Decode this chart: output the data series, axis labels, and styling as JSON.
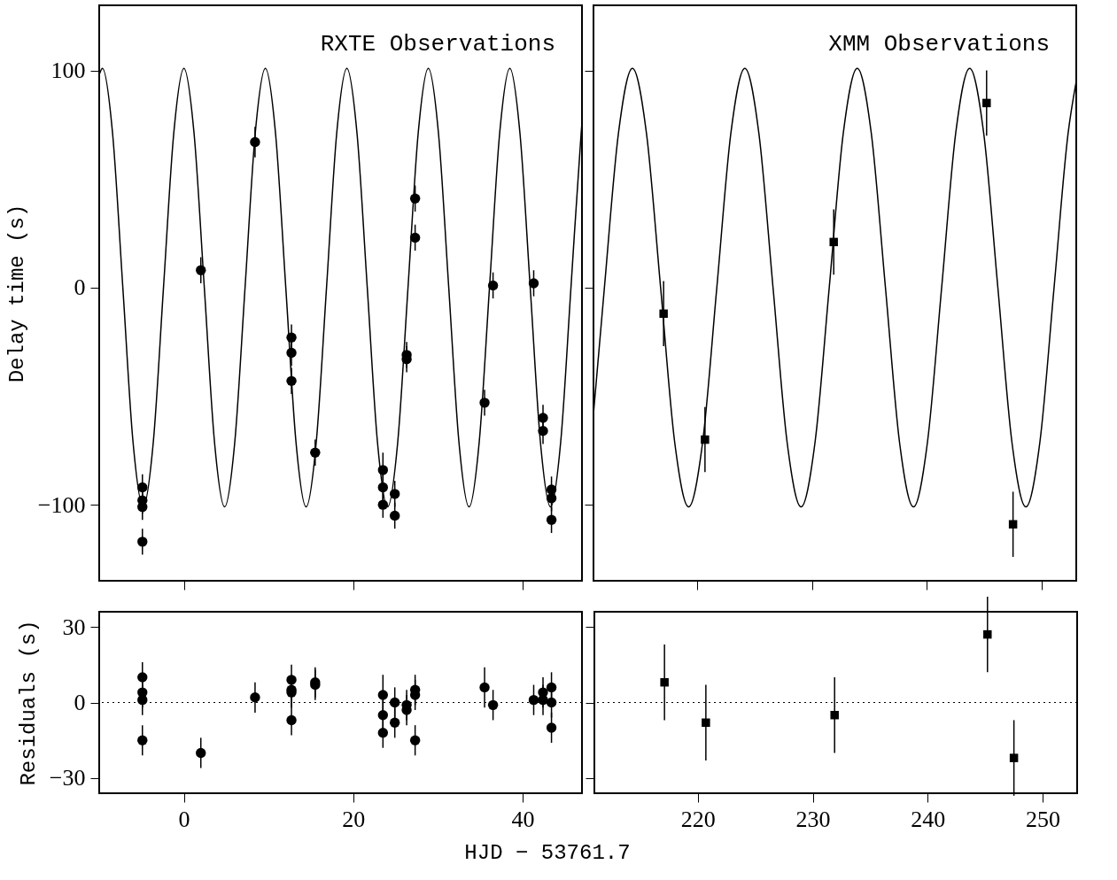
{
  "chart_data": [
    {
      "type": "scatter",
      "ylabel": "Delay time (s)",
      "xlim": [
        -10,
        47
      ],
      "ylim": [
        -135,
        130
      ],
      "xticks": [
        0,
        20,
        40
      ],
      "yticks": [
        -100,
        0,
        100
      ],
      "tick_labels": "y",
      "marker": "circle",
      "annotations": [
        "RXTE Observations"
      ],
      "series": [
        {
          "type": "line",
          "color": "#000000",
          "marker": "none",
          "line_style": "solid",
          "x": [
            -10,
            -9.62,
            -8.42,
            -7.21,
            -6.01,
            -4.81,
            -3.61,
            -2.41,
            -1.2,
            0,
            1.2,
            2.41,
            3.61,
            4.81,
            6.01,
            7.22,
            8.42,
            9.62,
            10.82,
            12.03,
            13.23,
            14.43,
            15.63,
            16.84,
            18.04,
            19.24,
            20.44,
            21.65,
            22.85,
            24.05,
            25.25,
            26.46,
            27.66,
            28.86,
            30.06,
            31.27,
            32.47,
            33.67,
            34.87,
            36.08,
            37.28,
            38.48,
            39.68,
            40.89,
            42.09,
            43.29,
            44.49,
            45.7,
            46.9,
            47
          ],
          "values": [
            98,
            101,
            71,
            0,
            -71,
            -101,
            -71,
            0,
            71,
            101,
            71,
            0,
            -71,
            -101,
            -71,
            0,
            71,
            101,
            71,
            0,
            -71,
            -101,
            -71,
            0,
            71,
            101,
            71,
            0,
            -71,
            -101,
            -71,
            0,
            71,
            101,
            71,
            0,
            -71,
            -101,
            -71,
            0,
            71,
            101,
            71,
            0,
            -71,
            -101,
            -71,
            0,
            71,
            76
          ]
        },
        {
          "color": "#000000",
          "x": [
            -4.9,
            -4.9,
            -4.9,
            -4.9,
            2.0,
            8.4,
            12.7,
            12.7,
            12.7,
            15.5,
            23.5,
            23.5,
            23.5,
            24.9,
            24.9,
            26.3,
            26.3,
            27.3,
            27.3,
            35.5,
            36.5,
            41.3,
            42.4,
            42.4,
            43.4,
            43.4,
            43.4
          ],
          "values": [
            -92,
            -98,
            -101,
            -117,
            8,
            67,
            -23,
            -30,
            -43,
            -76,
            -84,
            -92,
            -100,
            -95,
            -105,
            -31,
            -33,
            41,
            23,
            -53,
            1,
            2,
            -60,
            -66,
            -93,
            -97,
            -107
          ],
          "errors": [
            6,
            6,
            6,
            6,
            6,
            7,
            6,
            6,
            6,
            6,
            8,
            6,
            6,
            6,
            6,
            6,
            6,
            6,
            6,
            6,
            6,
            6,
            6,
            6,
            6,
            6,
            6
          ]
        }
      ]
    },
    {
      "type": "scatter",
      "xlim": [
        211,
        253
      ],
      "ylim": [
        -135,
        130
      ],
      "xticks": [
        220,
        230,
        240,
        250
      ],
      "yticks": [
        -100,
        0,
        100
      ],
      "tick_labels": false,
      "marker": "square",
      "annotations": [
        "XMM Observations"
      ],
      "series": [
        {
          "type": "line",
          "color": "#000000",
          "marker": "none",
          "line_style": "solid",
          "x": [
            211,
            211.95,
            213.17,
            214.39,
            215.61,
            216.84,
            218.06,
            219.28,
            220.5,
            221.73,
            222.95,
            224.17,
            225.39,
            226.62,
            227.84,
            229.06,
            230.28,
            231.51,
            232.73,
            233.95,
            235.17,
            236.4,
            237.62,
            238.84,
            240.06,
            241.29,
            242.51,
            243.73,
            244.95,
            246.18,
            247.4,
            248.62,
            249.84,
            251.07,
            252.29,
            253
          ],
          "values": [
            -58,
            0,
            71,
            101,
            71,
            0,
            -71,
            -101,
            -71,
            0,
            71,
            101,
            71,
            0,
            -71,
            -101,
            -71,
            0,
            71,
            101,
            71,
            0,
            -71,
            -101,
            -71,
            0,
            71,
            101,
            71,
            0,
            -71,
            -101,
            -71,
            0,
            71,
            95
          ]
        },
        {
          "color": "#000000",
          "x": [
            217.1,
            220.7,
            231.9,
            245.2,
            247.5
          ],
          "values": [
            -12,
            -70,
            21,
            85,
            -109
          ],
          "errors": [
            15,
            15,
            15,
            15,
            15
          ]
        }
      ]
    },
    {
      "type": "scatter",
      "ylabel": "Residuals (s)",
      "xlabel": "HJD − 53761.7",
      "xlim": [
        -10,
        47
      ],
      "ylim": [
        -36,
        36
      ],
      "xticks": [
        0,
        20,
        40
      ],
      "yticks": [
        -30,
        0,
        30
      ],
      "marker": "circle",
      "ref_lines": [
        {
          "axis": "y",
          "value": 0,
          "line_style": "dotted"
        }
      ],
      "series": [
        {
          "color": "#000000",
          "x": [
            -4.9,
            -4.9,
            -4.9,
            -4.9,
            2.0,
            8.4,
            12.7,
            12.7,
            12.7,
            12.7,
            15.5,
            15.5,
            23.5,
            23.5,
            23.5,
            24.9,
            24.9,
            26.3,
            26.3,
            27.3,
            27.3,
            27.3,
            35.5,
            36.5,
            41.3,
            42.4,
            42.4,
            43.4,
            43.4,
            43.4
          ],
          "values": [
            10,
            4,
            1,
            -15,
            -20,
            2,
            9,
            5,
            4,
            -7,
            8,
            7,
            3,
            -5,
            -12,
            0,
            -8,
            -1,
            -3,
            5,
            3,
            -15,
            6,
            -1,
            1,
            4,
            1,
            6,
            0,
            -10
          ],
          "errors": [
            6,
            6,
            6,
            6,
            6,
            6,
            6,
            6,
            6,
            6,
            6,
            6,
            8,
            6,
            6,
            6,
            6,
            6,
            6,
            6,
            6,
            6,
            8,
            6,
            6,
            6,
            6,
            6,
            6,
            6
          ]
        }
      ]
    },
    {
      "type": "scatter",
      "xlim": [
        211,
        253
      ],
      "ylim": [
        -36,
        36
      ],
      "xticks": [
        220,
        230,
        240,
        250
      ],
      "yticks": [
        -30,
        0,
        30
      ],
      "tick_labels": "x",
      "marker": "square",
      "ref_lines": [
        {
          "axis": "y",
          "value": 0,
          "line_style": "dotted"
        }
      ],
      "series": [
        {
          "color": "#000000",
          "x": [
            217.1,
            220.7,
            231.9,
            245.2,
            247.5
          ],
          "values": [
            8,
            -8,
            -5,
            27,
            -22
          ],
          "errors": [
            15,
            15,
            15,
            15,
            15
          ]
        }
      ]
    }
  ]
}
